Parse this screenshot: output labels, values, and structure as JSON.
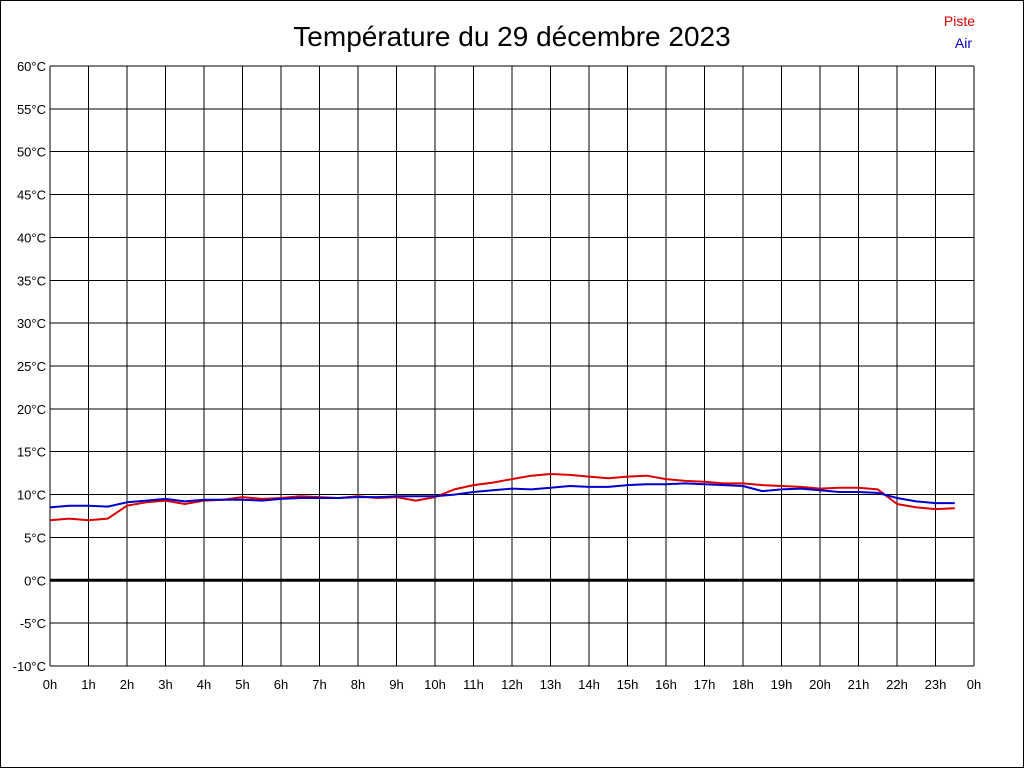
{
  "chart_data": {
    "type": "line",
    "title": "Température du 29 décembre 2023",
    "xlabel": "",
    "ylabel": "",
    "x_ticks": [
      "0h",
      "1h",
      "2h",
      "3h",
      "4h",
      "5h",
      "6h",
      "7h",
      "8h",
      "9h",
      "10h",
      "11h",
      "12h",
      "13h",
      "14h",
      "15h",
      "16h",
      "17h",
      "18h",
      "19h",
      "20h",
      "21h",
      "22h",
      "23h",
      "0h"
    ],
    "y_ticks": [
      "60°C",
      "55°C",
      "50°C",
      "45°C",
      "40°C",
      "35°C",
      "30°C",
      "25°C",
      "20°C",
      "15°C",
      "10°C",
      "5°C",
      "0°C",
      "-5°C",
      "-10°C"
    ],
    "xlim": [
      0,
      24
    ],
    "ylim": [
      -10,
      60
    ],
    "grid": true,
    "zero_line": 0,
    "legend_position": "top-right",
    "series": [
      {
        "name": "Piste",
        "color": "#dd0000",
        "x": [
          0,
          0.5,
          1,
          1.5,
          2,
          2.5,
          3,
          3.5,
          4,
          4.5,
          5,
          5.5,
          6,
          6.5,
          7,
          7.5,
          8,
          8.5,
          9,
          9.5,
          10,
          10.5,
          11,
          11.5,
          12,
          12.5,
          13,
          13.5,
          14,
          14.5,
          15,
          15.5,
          16,
          16.5,
          17,
          17.5,
          18,
          18.5,
          19,
          19.5,
          20,
          20.5,
          21,
          21.5,
          22,
          22.5,
          23,
          23.5
        ],
        "values": [
          7.0,
          7.2,
          7.0,
          7.2,
          8.7,
          9.1,
          9.3,
          8.9,
          9.3,
          9.4,
          9.7,
          9.5,
          9.6,
          9.8,
          9.7,
          9.6,
          9.8,
          9.6,
          9.7,
          9.3,
          9.7,
          10.6,
          11.1,
          11.4,
          11.8,
          12.2,
          12.4,
          12.3,
          12.1,
          11.9,
          12.1,
          12.2,
          11.8,
          11.6,
          11.5,
          11.3,
          11.3,
          11.1,
          11.0,
          10.9,
          10.7,
          10.8,
          10.8,
          10.6,
          8.9,
          8.5,
          8.3,
          8.4
        ]
      },
      {
        "name": "Air",
        "color": "#0000cc",
        "x": [
          0,
          0.5,
          1,
          1.5,
          2,
          2.5,
          3,
          3.5,
          4,
          4.5,
          5,
          5.5,
          6,
          6.5,
          7,
          7.5,
          8,
          8.5,
          9,
          9.5,
          10,
          10.5,
          11,
          11.5,
          12,
          12.5,
          13,
          13.5,
          14,
          14.5,
          15,
          15.5,
          16,
          16.5,
          17,
          17.5,
          18,
          18.5,
          19,
          19.5,
          20,
          20.5,
          21,
          21.5,
          22,
          22.5,
          23,
          23.5
        ],
        "values": [
          8.5,
          8.7,
          8.7,
          8.6,
          9.1,
          9.3,
          9.5,
          9.2,
          9.4,
          9.4,
          9.4,
          9.3,
          9.5,
          9.6,
          9.6,
          9.6,
          9.7,
          9.7,
          9.8,
          9.8,
          9.8,
          10.0,
          10.3,
          10.5,
          10.7,
          10.6,
          10.8,
          11.0,
          10.9,
          10.9,
          11.1,
          11.2,
          11.2,
          11.3,
          11.2,
          11.1,
          11.0,
          10.4,
          10.6,
          10.7,
          10.5,
          10.3,
          10.3,
          10.2,
          9.6,
          9.2,
          9.0,
          9.0
        ]
      }
    ]
  }
}
